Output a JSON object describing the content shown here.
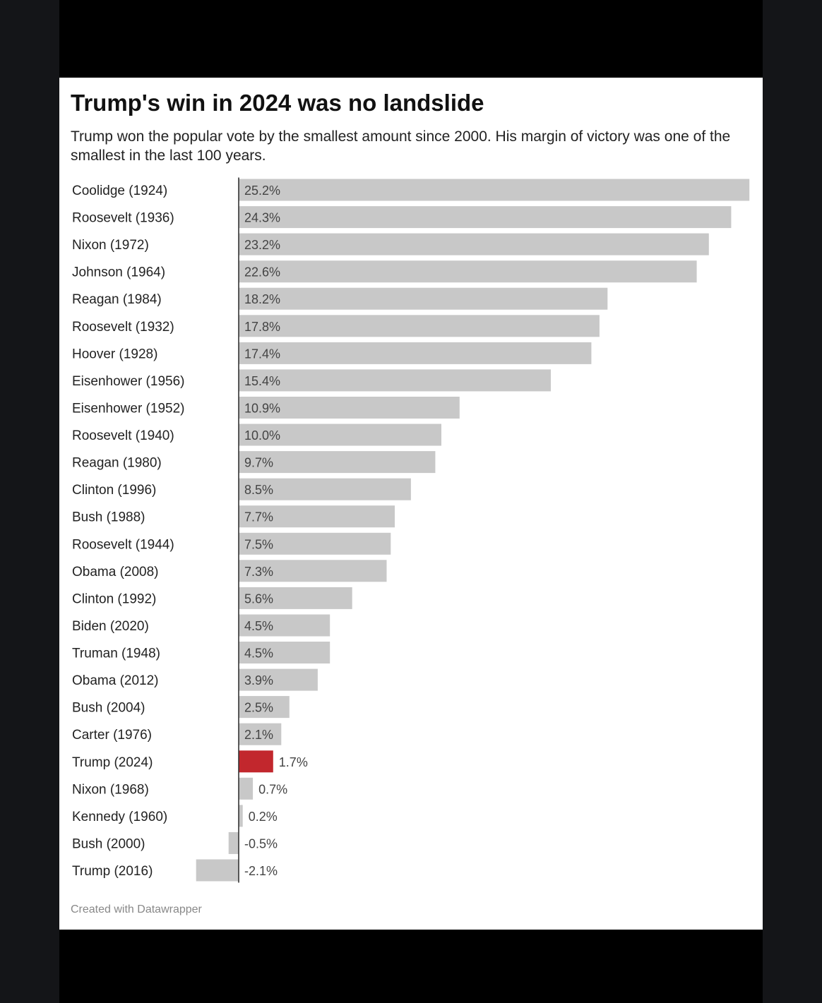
{
  "chart_data": {
    "type": "bar",
    "orientation": "horizontal",
    "title": "Trump's win in 2024 was no landslide",
    "subtitle": "Trump won the popular vote by the smallest amount since 2000. His margin of victory was one of the smallest in the last 100 years.",
    "categories": [
      "Coolidge (1924)",
      "Roosevelt (1936)",
      "Nixon (1972)",
      "Johnson (1964)",
      "Reagan (1984)",
      "Roosevelt (1932)",
      "Hoover (1928)",
      "Eisenhower (1956)",
      "Eisenhower (1952)",
      "Roosevelt (1940)",
      "Reagan (1980)",
      "Clinton (1996)",
      "Bush (1988)",
      "Roosevelt (1944)",
      "Obama (2008)",
      "Clinton (1992)",
      "Biden (2020)",
      "Truman (1948)",
      "Obama (2012)",
      "Bush (2004)",
      "Carter (1976)",
      "Trump (2024)",
      "Nixon (1968)",
      "Kennedy (1960)",
      "Bush (2000)",
      "Trump (2016)"
    ],
    "values": [
      25.2,
      24.3,
      23.2,
      22.6,
      18.2,
      17.8,
      17.4,
      15.4,
      10.9,
      10.0,
      9.7,
      8.5,
      7.7,
      7.5,
      7.3,
      5.6,
      4.5,
      4.5,
      3.9,
      2.5,
      2.1,
      1.7,
      0.7,
      0.2,
      -0.5,
      -2.1
    ],
    "labels": [
      "25.2%",
      "24.3%",
      "23.2%",
      "22.6%",
      "18.2%",
      "17.8%",
      "17.4%",
      "15.4%",
      "10.9%",
      "10.0%",
      "9.7%",
      "8.5%",
      "7.7%",
      "7.5%",
      "7.3%",
      "5.6%",
      "4.5%",
      "4.5%",
      "3.9%",
      "2.5%",
      "2.1%",
      "1.7%",
      "0.7%",
      "0.2%",
      "-0.5%",
      "-2.1%"
    ],
    "highlight_index": 21,
    "xlim": [
      -2.1,
      25.2
    ],
    "xlabel": "",
    "ylabel": "",
    "grid": false,
    "colors": {
      "bar": "#c8c8c8",
      "highlight": "#c2272d",
      "axis": "#333333",
      "label": "#222222",
      "value_label": "#444444"
    }
  },
  "footer": {
    "credit": "Created with Datawrapper"
  }
}
